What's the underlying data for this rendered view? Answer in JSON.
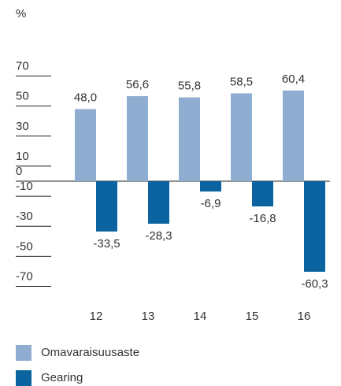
{
  "chart_data": {
    "type": "bar",
    "y_label": "%",
    "categories": [
      "12",
      "13",
      "14",
      "15",
      "16"
    ],
    "series": [
      {
        "name": "Omavaraisuusaste",
        "color": "#8fadd1",
        "values": [
          48.0,
          56.6,
          55.8,
          58.5,
          60.4
        ],
        "value_labels": [
          "48,0",
          "56,6",
          "55,8",
          "58,5",
          "60,4"
        ]
      },
      {
        "name": "Gearing",
        "color": "#0b64a0",
        "values": [
          -33.5,
          -28.3,
          -6.9,
          -16.8,
          -60.3
        ],
        "value_labels": [
          "-33,5",
          "-28,3",
          "-6,9",
          "-16,8",
          "-60,3"
        ]
      }
    ],
    "ylim": [
      -75,
      75
    ],
    "yticks": [
      70,
      50,
      30,
      10,
      0,
      -10,
      -30,
      -50,
      -70
    ],
    "legend": "bottom-left"
  }
}
